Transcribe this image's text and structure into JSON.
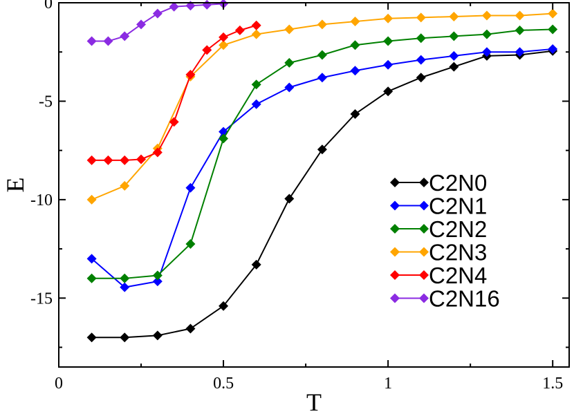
{
  "chart_data": {
    "type": "line",
    "title": "",
    "xlabel": "T",
    "ylabel": "E",
    "xlim": [
      0,
      1.55
    ],
    "ylim": [
      -18.5,
      0
    ],
    "xticks": [
      0,
      0.5,
      1,
      1.5
    ],
    "xtick_labels": [
      "0",
      "0.5",
      "1",
      "1.5"
    ],
    "yticks": [
      0,
      -5,
      -10,
      -15
    ],
    "ytick_labels": [
      "0",
      "-5",
      "-10",
      "-15"
    ],
    "grid": false,
    "legend_position": "right",
    "series": [
      {
        "name": "C2N0",
        "color": "#000000",
        "x": [
          0.1,
          0.2,
          0.3,
          0.4,
          0.5,
          0.6,
          0.7,
          0.8,
          0.9,
          1.0,
          1.1,
          1.2,
          1.3,
          1.4,
          1.5
        ],
        "y": [
          -17.0,
          -17.0,
          -16.9,
          -16.55,
          -15.4,
          -13.3,
          -9.95,
          -7.45,
          -5.65,
          -4.5,
          -3.8,
          -3.25,
          -2.7,
          -2.65,
          -2.45
        ]
      },
      {
        "name": "C2N1",
        "color": "#0000ff",
        "x": [
          0.1,
          0.2,
          0.3,
          0.4,
          0.5,
          0.6,
          0.7,
          0.8,
          0.9,
          1.0,
          1.1,
          1.2,
          1.3,
          1.4,
          1.5
        ],
        "y": [
          -13.0,
          -14.45,
          -14.15,
          -9.4,
          -6.55,
          -5.15,
          -4.3,
          -3.8,
          -3.45,
          -3.15,
          -2.9,
          -2.7,
          -2.5,
          -2.5,
          -2.35
        ]
      },
      {
        "name": "C2N2",
        "color": "#008000",
        "x": [
          0.1,
          0.2,
          0.3,
          0.4,
          0.5,
          0.6,
          0.7,
          0.8,
          0.9,
          1.0,
          1.1,
          1.2,
          1.3,
          1.4,
          1.5
        ],
        "y": [
          -14.0,
          -14.0,
          -13.85,
          -12.25,
          -6.9,
          -4.15,
          -3.05,
          -2.65,
          -2.15,
          -1.95,
          -1.8,
          -1.7,
          -1.6,
          -1.4,
          -1.35
        ]
      },
      {
        "name": "C2N3",
        "color": "#ffa500",
        "x": [
          0.1,
          0.2,
          0.3,
          0.4,
          0.5,
          0.6,
          0.7,
          0.8,
          0.9,
          1.0,
          1.1,
          1.2,
          1.3,
          1.4,
          1.5
        ],
        "y": [
          -10.0,
          -9.3,
          -7.4,
          -3.75,
          -2.15,
          -1.6,
          -1.35,
          -1.1,
          -0.95,
          -0.8,
          -0.75,
          -0.7,
          -0.65,
          -0.65,
          -0.55
        ]
      },
      {
        "name": "C2N4",
        "color": "#ff0000",
        "x": [
          0.1,
          0.15,
          0.2,
          0.25,
          0.3,
          0.35,
          0.4,
          0.45,
          0.5,
          0.55,
          0.6
        ],
        "y": [
          -8.0,
          -8.0,
          -8.0,
          -7.95,
          -7.6,
          -6.05,
          -3.65,
          -2.4,
          -1.75,
          -1.4,
          -1.15
        ]
      },
      {
        "name": "C2N16",
        "color": "#8b2be2",
        "x": [
          0.1,
          0.15,
          0.2,
          0.25,
          0.3,
          0.35,
          0.4,
          0.45,
          0.5
        ],
        "y": [
          -1.95,
          -1.95,
          -1.7,
          -1.1,
          -0.55,
          -0.2,
          -0.15,
          -0.1,
          -0.05
        ]
      }
    ]
  }
}
